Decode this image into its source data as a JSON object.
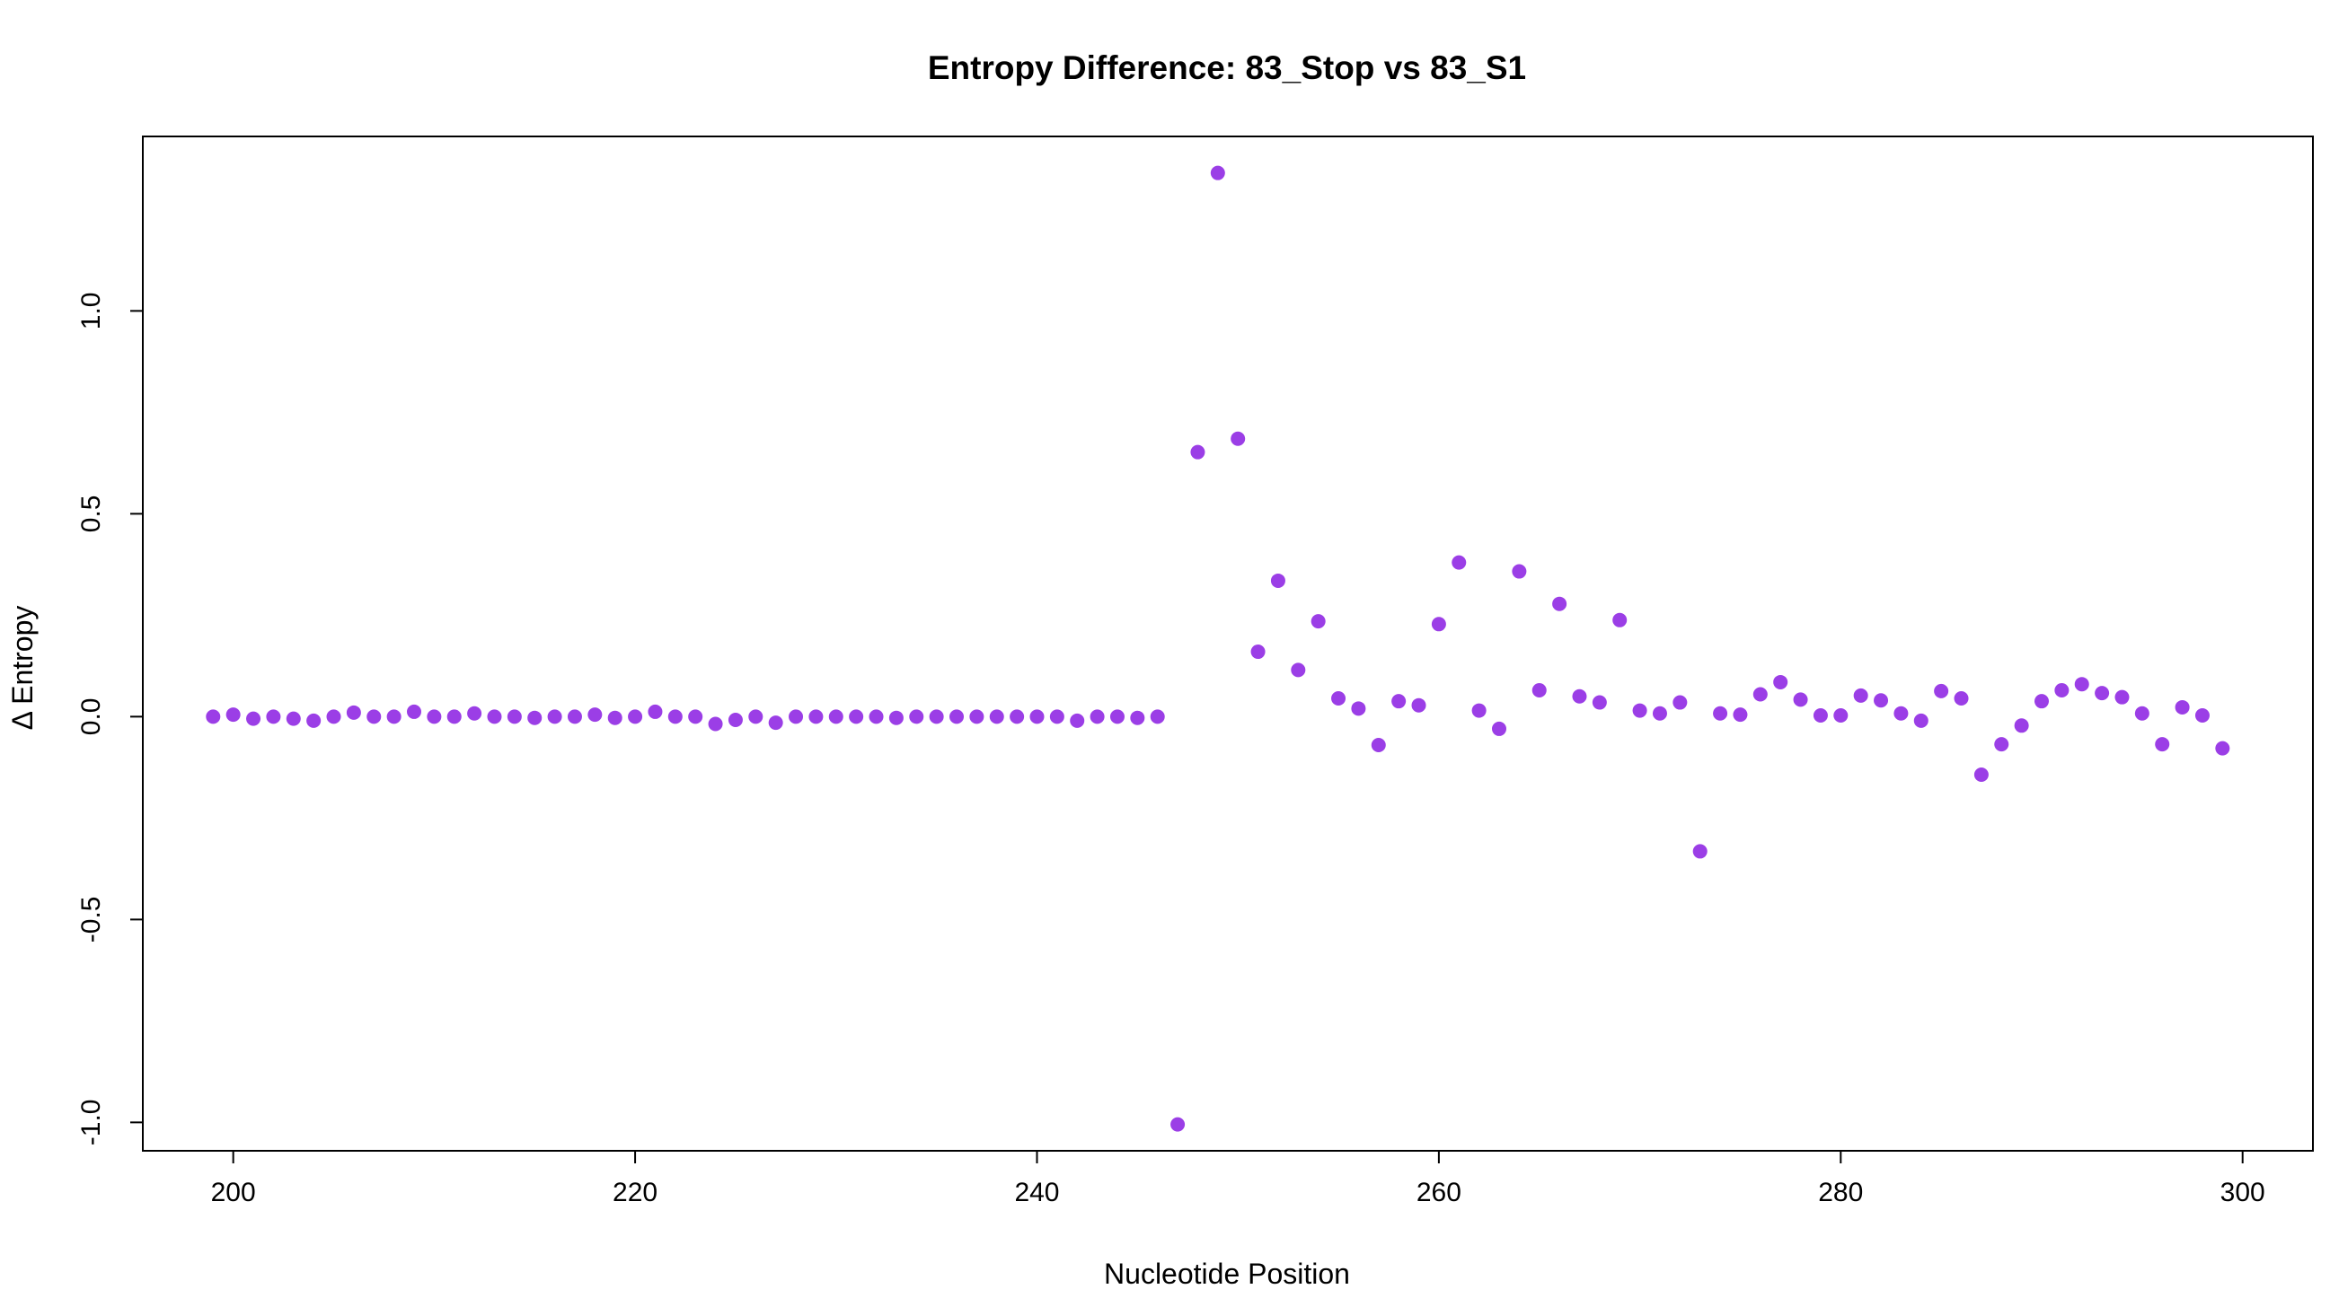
{
  "chart_data": {
    "type": "scatter",
    "title": "Entropy Difference: 83_Stop vs 83_S1",
    "xlabel": "Nucleotide Position",
    "ylabel": "Δ Entropy",
    "xlim": [
      195.5,
      303.5
    ],
    "ylim": [
      -1.07,
      1.43
    ],
    "x_ticks": [
      200,
      220,
      240,
      260,
      280,
      300
    ],
    "x_tick_labels": [
      "200",
      "220",
      "240",
      "260",
      "280",
      "300"
    ],
    "y_ticks": [
      -1.0,
      -0.5,
      0.0,
      0.5,
      1.0
    ],
    "y_tick_labels": [
      "-1.0",
      "-0.5",
      "0.0",
      "0.5",
      "1.0"
    ],
    "grid": false,
    "legend": "none",
    "point_color": "#9b3ee6",
    "series": [
      {
        "x": [
          199,
          200,
          201,
          202,
          203,
          204,
          205,
          206,
          207,
          208,
          209,
          210,
          211,
          212,
          213,
          214,
          215,
          216,
          217,
          218,
          219,
          220,
          221,
          222,
          223,
          224,
          225,
          226,
          227,
          228,
          229,
          230,
          231,
          232,
          233,
          234,
          235,
          236,
          237,
          238,
          239,
          240,
          241,
          242,
          243,
          244,
          245,
          246,
          247,
          248,
          249,
          250,
          251,
          252,
          253,
          254,
          255,
          256,
          257,
          258,
          259,
          260,
          261,
          262,
          263,
          264,
          265,
          266,
          267,
          268,
          269,
          270,
          271,
          272,
          273,
          274,
          275,
          276,
          277,
          278,
          279,
          280,
          281,
          282,
          283,
          284,
          285,
          286,
          287,
          288,
          289,
          290,
          291,
          292,
          293,
          294,
          295,
          296,
          297,
          298,
          299
        ],
        "y": [
          0.0,
          0.005,
          -0.005,
          0.0,
          -0.005,
          -0.01,
          0.0,
          0.01,
          0.0,
          0.0,
          0.012,
          0.0,
          0.0,
          0.008,
          0.0,
          0.0,
          -0.003,
          0.0,
          0.0,
          0.005,
          -0.003,
          0.0,
          0.012,
          0.0,
          0.0,
          -0.018,
          -0.008,
          0.0,
          -0.015,
          0.0,
          0.0,
          0.0,
          0.0,
          0.0,
          -0.003,
          0.0,
          0.0,
          0.0,
          0.0,
          0.0,
          0.0,
          0.0,
          0.0,
          -0.01,
          0.0,
          0.0,
          -0.003,
          0.0,
          -1.005,
          0.652,
          1.34,
          0.685,
          0.16,
          0.335,
          0.115,
          0.235,
          0.045,
          0.02,
          -0.07,
          0.038,
          0.028,
          0.228,
          0.38,
          0.015,
          -0.03,
          0.358,
          0.065,
          0.278,
          0.05,
          0.035,
          0.238,
          0.015,
          0.008,
          0.035,
          -0.332,
          0.008,
          0.005,
          0.055,
          0.085,
          0.042,
          0.003,
          0.003,
          0.052,
          0.04,
          0.008,
          -0.01,
          0.063,
          0.045,
          -0.143,
          -0.068,
          -0.022,
          0.038,
          0.065,
          0.08,
          0.058,
          0.048,
          0.008,
          -0.068,
          0.023,
          0.003,
          -0.078
        ]
      }
    ]
  }
}
